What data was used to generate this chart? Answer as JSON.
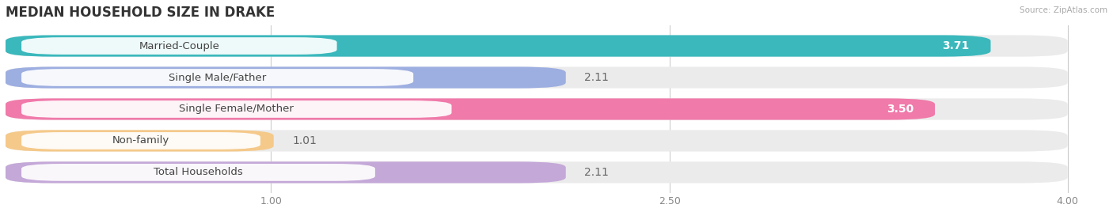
{
  "title": "MEDIAN HOUSEHOLD SIZE IN DRAKE",
  "source": "Source: ZipAtlas.com",
  "categories": [
    "Married-Couple",
    "Single Male/Father",
    "Single Female/Mother",
    "Non-family",
    "Total Households"
  ],
  "values": [
    3.71,
    2.11,
    3.5,
    1.01,
    2.11
  ],
  "bar_colors": [
    "#3ab8bc",
    "#9daee0",
    "#f07aaa",
    "#f5c98a",
    "#c4a8d8"
  ],
  "bar_bg_colors": [
    "#ebebeb",
    "#ebebeb",
    "#ebebeb",
    "#ebebeb",
    "#ebebeb"
  ],
  "value_in_bar": [
    true,
    false,
    true,
    false,
    false
  ],
  "value_colors_in": [
    "white",
    "white",
    "white",
    "white",
    "white"
  ],
  "value_colors_out": [
    "#666666",
    "#666666",
    "#666666",
    "#666666",
    "#666666"
  ],
  "xlim_min": 0,
  "xlim_max": 4.15,
  "xaxis_max": 4.0,
  "xticks": [
    1.0,
    2.5,
    4.0
  ],
  "value_fontsize": 10,
  "label_fontsize": 9.5,
  "title_fontsize": 12,
  "background_color": "#ffffff"
}
